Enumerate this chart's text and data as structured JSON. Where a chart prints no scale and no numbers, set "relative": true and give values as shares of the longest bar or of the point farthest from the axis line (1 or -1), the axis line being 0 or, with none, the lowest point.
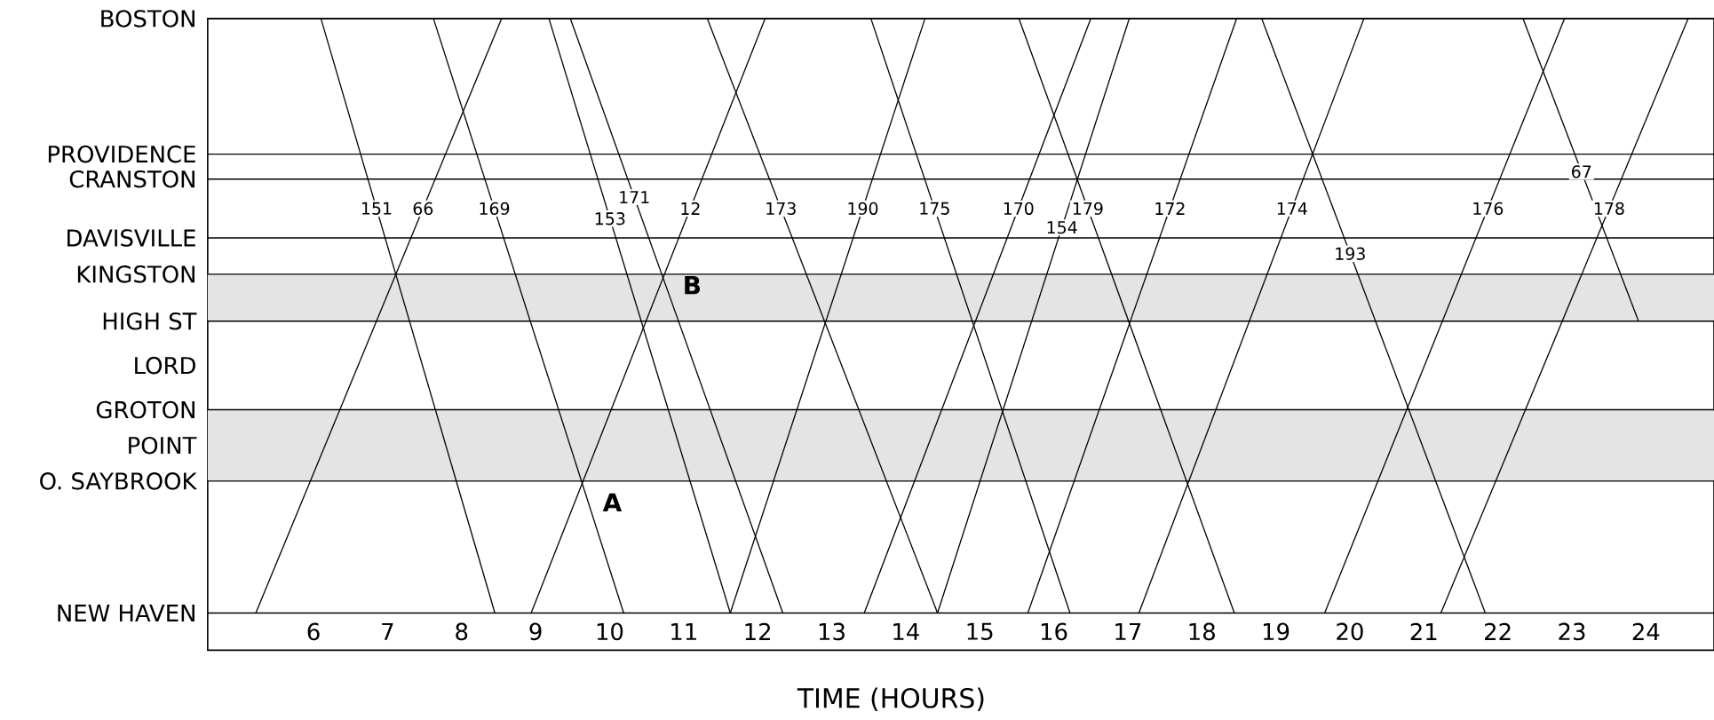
{
  "chart_data": {
    "type": "line",
    "xlabel": "TIME (HOURS)",
    "color": "#000000",
    "relative": true,
    "xlim": [
      4.57,
      24.92
    ],
    "xticks": [
      6,
      7,
      8,
      9,
      10,
      11,
      12,
      13,
      14,
      15,
      16,
      17,
      18,
      19,
      20,
      21,
      22,
      23,
      24
    ],
    "series": [
      {
        "name": "151",
        "x": [
          6.1,
          8.45
        ],
        "values": [
          1,
          0
        ]
      },
      {
        "name": "66",
        "x": [
          5.22,
          8.54
        ],
        "values": [
          0,
          1
        ]
      },
      {
        "name": "169",
        "x": [
          7.62,
          10.19
        ],
        "values": [
          1,
          0
        ]
      },
      {
        "name": "153",
        "x": [
          9.18,
          11.63
        ],
        "values": [
          1,
          0
        ]
      },
      {
        "name": "171",
        "x": [
          9.47,
          12.34
        ],
        "values": [
          1,
          0
        ]
      },
      {
        "name": "12",
        "x": [
          8.94,
          12.1
        ],
        "values": [
          0,
          1
        ]
      },
      {
        "name": "173",
        "x": [
          11.32,
          14.43
        ],
        "values": [
          1,
          0
        ]
      },
      {
        "name": "190",
        "x": [
          11.63,
          14.26
        ],
        "values": [
          0,
          1
        ]
      },
      {
        "name": "175",
        "x": [
          13.53,
          16.22
        ],
        "values": [
          1,
          0
        ]
      },
      {
        "name": "170",
        "x": [
          13.44,
          16.5
        ],
        "values": [
          0,
          1
        ]
      },
      {
        "name": "154",
        "x": [
          14.43,
          17.02
        ],
        "values": [
          0,
          1
        ]
      },
      {
        "name": "179",
        "x": [
          15.53,
          18.44
        ],
        "values": [
          1,
          0
        ]
      },
      {
        "name": "172",
        "x": [
          15.65,
          18.47
        ],
        "values": [
          0,
          1
        ]
      },
      {
        "name": "174",
        "x": [
          17.15,
          20.19
        ],
        "values": [
          0,
          1
        ]
      },
      {
        "name": "193",
        "x": [
          18.81,
          21.83
        ],
        "values": [
          1,
          0
        ]
      },
      {
        "name": "176",
        "x": [
          19.66,
          22.9
        ],
        "values": [
          0,
          1
        ]
      },
      {
        "name": "178",
        "x": [
          21.23,
          24.57
        ],
        "values": [
          0,
          1
        ]
      },
      {
        "name": "67",
        "x": [
          22.34,
          23.9
        ],
        "values": [
          1,
          0.491
        ]
      }
    ],
    "ref_lines": [
      {
        "axis": "y",
        "value": 1,
        "label": "BOSTON"
      },
      {
        "axis": "y",
        "value": 0.772,
        "label": "PROVIDENCE"
      },
      {
        "axis": "y",
        "value": 0.73,
        "label": "CRANSTON"
      },
      {
        "axis": "y",
        "value": 0.631,
        "label": "DAVISVILLE"
      },
      {
        "axis": "y",
        "value": 0.57,
        "label": "KINGSTON"
      },
      {
        "axis": "y",
        "value": 0.491,
        "label": "HIGH ST"
      },
      {
        "axis": "y",
        "value": 0.342,
        "label": "GROTON"
      },
      {
        "axis": "y",
        "value": 0.222,
        "label": "O. SAYBROOK"
      },
      {
        "axis": "y",
        "value": 0,
        "label": "NEW HAVEN"
      }
    ],
    "bands": [
      {
        "axis": "y",
        "from": 0.491,
        "to": 0.57,
        "color": "#e4e4e4"
      },
      {
        "axis": "y",
        "from": 0.222,
        "to": 0.342,
        "color": "#e4e4e4"
      }
    ],
    "annotations": [
      "LORD",
      "POINT",
      "A",
      "B"
    ]
  }
}
